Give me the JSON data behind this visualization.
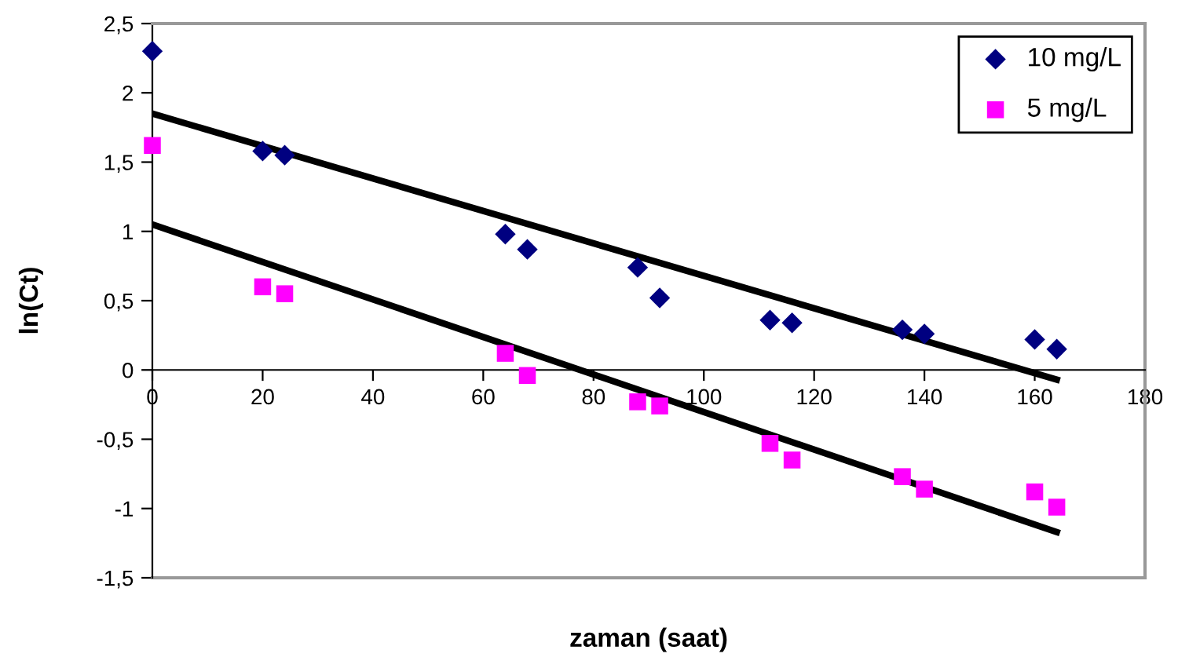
{
  "chart_data": {
    "type": "scatter",
    "xlabel": "zaman (saat)",
    "ylabel": "ln(Ct)",
    "xlim": [
      0,
      180
    ],
    "ylim": [
      -1.5,
      2.5
    ],
    "xticks": [
      0,
      20,
      40,
      60,
      80,
      100,
      120,
      140,
      160,
      180
    ],
    "yticks": [
      {
        "value": -1.5,
        "label": "-1,5"
      },
      {
        "value": -1,
        "label": "-1"
      },
      {
        "value": -0.5,
        "label": "-0,5"
      },
      0,
      {
        "value": 0.5,
        "label": "0,5"
      },
      1,
      {
        "value": 1.5,
        "label": "1,5"
      },
      2,
      {
        "value": 2.5,
        "label": "2,5"
      }
    ],
    "grid": false,
    "legend": "top right",
    "series": [
      {
        "name": "10 mg/L",
        "color": "#000080",
        "marker": "diamond",
        "x": [
          0,
          20,
          24,
          64,
          68,
          88,
          92,
          112,
          116,
          136,
          140,
          160,
          164
        ],
        "values": [
          2.3,
          1.58,
          1.55,
          0.98,
          0.87,
          0.74,
          0.52,
          0.36,
          0.34,
          0.29,
          0.26,
          0.22,
          0.15
        ]
      },
      {
        "name": "5 mg/L",
        "color": "#ff00ff",
        "marker": "square",
        "x": [
          0,
          20,
          24,
          64,
          68,
          88,
          92,
          112,
          116,
          136,
          140,
          160,
          164
        ],
        "values": [
          1.62,
          0.6,
          0.55,
          0.12,
          -0.04,
          -0.23,
          -0.26,
          -0.53,
          -0.65,
          -0.77,
          -0.86,
          -0.88,
          -0.99
        ]
      },
      {
        "type": "line",
        "color": "#000000",
        "marker": "none",
        "x": [
          0,
          164
        ],
        "values": [
          1.85,
          -0.07
        ]
      },
      {
        "type": "line",
        "color": "#000000",
        "marker": "none",
        "x": [
          0,
          164
        ],
        "values": [
          1.05,
          -1.17
        ]
      }
    ]
  }
}
